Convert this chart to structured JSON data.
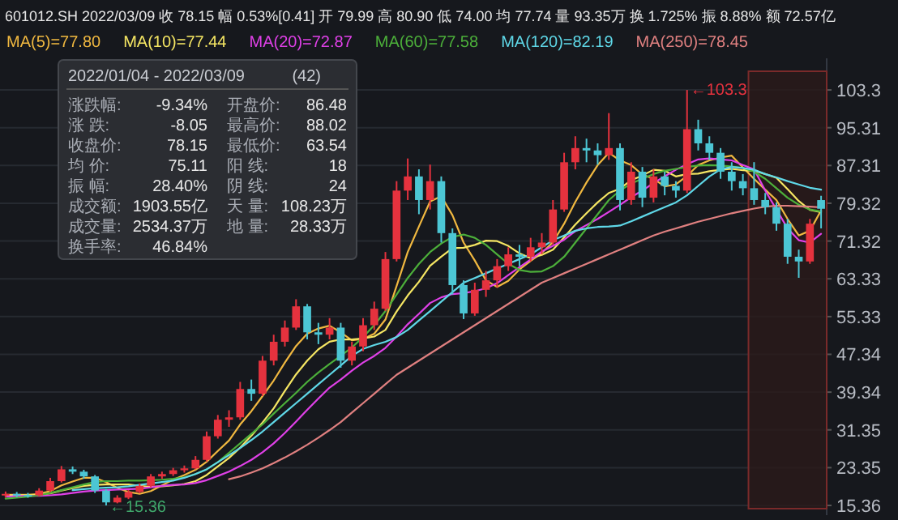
{
  "chart_data": {
    "type": "candlestick",
    "title": "601012.SH 2022/03/09  收 78.15  幅 0.53%[0.41]  开 79.99  高 80.90  低 74.00  均 77.74  量 93.35万  换 1.725%  振 8.88%  额 72.57亿",
    "categories": [
      null,
      null,
      null,
      null,
      null,
      null,
      null,
      null,
      null,
      null,
      null,
      null,
      null,
      null,
      null,
      null,
      null,
      null,
      null,
      null,
      null,
      null,
      null,
      null,
      null,
      null,
      null,
      null,
      null,
      null,
      null,
      null,
      null,
      null,
      null,
      null,
      null,
      null,
      null,
      null,
      null,
      null,
      null,
      null,
      null,
      null,
      null,
      null,
      null,
      null,
      null,
      null,
      null,
      null,
      null,
      null,
      null,
      null,
      null,
      null,
      null,
      null,
      null,
      null,
      null,
      null,
      null,
      null,
      null,
      null,
      null,
      null,
      null,
      null
    ],
    "ohlc": [
      [
        17.5,
        18.3,
        17.0,
        17.8
      ],
      [
        17.8,
        18.2,
        17.1,
        17.6
      ],
      [
        17.6,
        18.0,
        17.0,
        17.5
      ],
      [
        17.5,
        19.0,
        17.3,
        18.5
      ],
      [
        18.5,
        21.2,
        18.2,
        20.5
      ],
      [
        20.5,
        23.7,
        20.2,
        23.0
      ],
      [
        23.0,
        23.6,
        22.0,
        22.5
      ],
      [
        22.5,
        22.9,
        21.0,
        21.5
      ],
      [
        21.5,
        21.8,
        18.0,
        18.5
      ],
      [
        18.5,
        18.8,
        15.36,
        16.0
      ],
      [
        16.0,
        17.5,
        15.8,
        17.0
      ],
      [
        17.0,
        18.6,
        16.7,
        18.2
      ],
      [
        18.2,
        20.0,
        17.9,
        19.5
      ],
      [
        19.5,
        22.0,
        19.2,
        21.5
      ],
      [
        21.5,
        22.5,
        21.0,
        22.0
      ],
      [
        22.0,
        23.3,
        21.6,
        22.8
      ],
      [
        22.8,
        23.8,
        22.3,
        23.2
      ],
      [
        23.2,
        25.8,
        23.0,
        25.0
      ],
      [
        25.0,
        31.0,
        24.6,
        30.0
      ],
      [
        30.0,
        34.5,
        29.5,
        33.5
      ],
      [
        33.5,
        35.5,
        32.0,
        34.0
      ],
      [
        34.0,
        41.5,
        33.5,
        40.0
      ],
      [
        40.0,
        42.0,
        37.5,
        39.0
      ],
      [
        39.0,
        47.0,
        38.5,
        46.0
      ],
      [
        46.0,
        51.5,
        45.0,
        50.0
      ],
      [
        50.0,
        54.5,
        49.0,
        53.0
      ],
      [
        53.0,
        59.0,
        52.5,
        57.5
      ],
      [
        57.5,
        58.0,
        50.5,
        52.0
      ],
      [
        52.0,
        54.0,
        49.5,
        51.5
      ],
      [
        51.5,
        55.0,
        50.5,
        53.0
      ],
      [
        53.0,
        54.0,
        44.5,
        46.0
      ],
      [
        46.0,
        50.0,
        45.0,
        49.0
      ],
      [
        49.0,
        55.0,
        48.0,
        53.5
      ],
      [
        53.5,
        58.5,
        52.5,
        57.0
      ],
      [
        57.0,
        69.0,
        56.5,
        67.5
      ],
      [
        67.5,
        84.0,
        67.0,
        82.0
      ],
      [
        82.0,
        88.8,
        80.0,
        85.0
      ],
      [
        85.0,
        86.5,
        77.0,
        80.0
      ],
      [
        80.0,
        87.5,
        78.0,
        84.0
      ],
      [
        84.0,
        85.0,
        71.0,
        73.0
      ],
      [
        73.0,
        74.0,
        60.0,
        62.0
      ],
      [
        62.0,
        63.0,
        54.8,
        56.0
      ],
      [
        56.0,
        62.5,
        55.5,
        61.0
      ],
      [
        61.0,
        65.0,
        59.5,
        63.0
      ],
      [
        63.0,
        67.5,
        61.5,
        66.0
      ],
      [
        66.0,
        70.0,
        65.0,
        68.5
      ],
      [
        68.5,
        70.5,
        66.0,
        68.0
      ],
      [
        68.0,
        72.0,
        67.0,
        70.0
      ],
      [
        70.0,
        73.0,
        68.5,
        71.0
      ],
      [
        71.0,
        80.0,
        70.5,
        78.0
      ],
      [
        78.0,
        90.0,
        77.5,
        88.0
      ],
      [
        88.0,
        93.5,
        86.5,
        91.0
      ],
      [
        91.0,
        93.0,
        88.0,
        90.5
      ],
      [
        90.5,
        92.0,
        87.5,
        89.5
      ],
      [
        89.5,
        98.4,
        88.5,
        91.0
      ],
      [
        91.0,
        92.0,
        77.8,
        80.0
      ],
      [
        80.0,
        88.0,
        79.0,
        86.0
      ],
      [
        86.0,
        87.0,
        78.5,
        80.5
      ],
      [
        80.5,
        86.5,
        79.5,
        85.0
      ],
      [
        85.0,
        86.0,
        81.0,
        83.0
      ],
      [
        83.0,
        84.0,
        80.5,
        82.0
      ],
      [
        82.0,
        103.3,
        81.5,
        95.0
      ],
      [
        95.0,
        97.0,
        90.5,
        92.0
      ],
      [
        92.0,
        93.5,
        88.5,
        90.0
      ],
      [
        90.0,
        91.0,
        84.5,
        86.0
      ],
      [
        86.0,
        88.0,
        82.0,
        84.0
      ],
      [
        84.0,
        85.5,
        81.0,
        82.5
      ],
      [
        82.5,
        88.02,
        79.0,
        80.0
      ],
      [
        80.0,
        81.5,
        77.0,
        78.5
      ],
      [
        78.5,
        79.5,
        73.5,
        75.0
      ],
      [
        75.0,
        76.0,
        66.5,
        68.0
      ],
      [
        68.0,
        69.5,
        63.54,
        67.0
      ],
      [
        67.0,
        76.0,
        66.5,
        75.0
      ],
      [
        79.99,
        80.9,
        74.0,
        78.15
      ]
    ],
    "series": [
      {
        "name": "MA(5)=77.80",
        "type": "line",
        "color": "#f0b840",
        "values": [
          17.6,
          17.6,
          17.6,
          17.8,
          18.4,
          19.6,
          20.4,
          21.2,
          21.2,
          20.3,
          19.1,
          18.2,
          17.8,
          18.4,
          19.6,
          20.8,
          21.8,
          22.9,
          24.6,
          26.9,
          29.1,
          32.5,
          35.3,
          38.5,
          41.8,
          45.6,
          49.1,
          51.7,
          52.8,
          53.4,
          52.0,
          50.3,
          50.6,
          51.7,
          54.7,
          61.8,
          69.0,
          74.4,
          79.7,
          80.8,
          76.8,
          71.0,
          67.2,
          63.0,
          61.6,
          62.9,
          65.3,
          67.1,
          68.8,
          71.1,
          75.0,
          79.6,
          83.7,
          87.4,
          90.0,
          88.4,
          87.4,
          85.4,
          84.5,
          82.9,
          83.3,
          85.1,
          87.4,
          88.4,
          89.0,
          89.4,
          86.9,
          84.5,
          82.2,
          80.0,
          76.0,
          72.5,
          73.5,
          77.8
        ]
      },
      {
        "name": "MA(10)=77.44",
        "type": "line",
        "color": "#f5e663",
        "values": [
          17.5,
          17.5,
          17.5,
          17.6,
          17.9,
          18.5,
          19.0,
          19.5,
          19.7,
          19.8,
          19.8,
          19.8,
          19.5,
          19.3,
          19.4,
          19.6,
          19.9,
          20.5,
          21.8,
          23.6,
          25.4,
          27.6,
          30.1,
          32.9,
          35.9,
          39.6,
          43.1,
          46.0,
          48.4,
          50.0,
          50.5,
          50.5,
          50.7,
          51.1,
          52.5,
          56.4,
          59.8,
          62.7,
          66.1,
          68.0,
          69.8,
          69.9,
          70.5,
          71.4,
          71.3,
          70.3,
          68.7,
          67.7,
          68.4,
          69.5,
          72.1,
          74.8,
          77.2,
          79.5,
          81.5,
          82.4,
          84.2,
          85.2,
          86.4,
          86.2,
          85.0,
          85.5,
          85.6,
          86.1,
          86.4,
          86.6,
          86.3,
          86.2,
          85.5,
          84.7,
          82.3,
          79.8,
          77.9,
          77.44
        ]
      },
      {
        "name": "MA(20)=72.87",
        "type": "line",
        "color": "#e040e8",
        "values": [
          17.2,
          17.3,
          17.4,
          17.4,
          17.5,
          17.7,
          18.0,
          18.3,
          18.5,
          18.6,
          18.7,
          18.8,
          18.9,
          19.2,
          19.5,
          19.7,
          19.8,
          20.1,
          20.7,
          21.6,
          22.5,
          23.7,
          25.0,
          26.6,
          28.5,
          30.7,
          33.1,
          35.6,
          38.0,
          40.3,
          42.0,
          43.9,
          45.6,
          47.0,
          48.7,
          51.1,
          53.7,
          55.9,
          58.2,
          59.4,
          60.1,
          60.3,
          60.7,
          61.3,
          62.4,
          64.1,
          65.8,
          67.4,
          69.1,
          70.3,
          71.6,
          73.4,
          74.7,
          76.0,
          77.5,
          79.0,
          80.6,
          82.0,
          83.6,
          85.0,
          86.4,
          87.6,
          88.6,
          88.8,
          88.6,
          88.4,
          87.4,
          86.5,
          82.0,
          78.0,
          74.0,
          71.5,
          71.0,
          72.87
        ]
      },
      {
        "name": "MA(60)=77.58",
        "type": "line",
        "color": "#4caf3a",
        "values": [
          16.8,
          17.0,
          17.2,
          17.5,
          18.0,
          18.6,
          19.2,
          19.8,
          20.3,
          20.5,
          20.5,
          20.6,
          20.6,
          20.7,
          20.8,
          21.0,
          21.3,
          22.0,
          23.0,
          24.5,
          26.5,
          28.5,
          30.5,
          32.5,
          34.8,
          37.0,
          39.2,
          41.5,
          43.5,
          45.3,
          47.0,
          48.8,
          51.0,
          53.5,
          56.5,
          60.0,
          63.5,
          66.5,
          69.0,
          70.8,
          72.2,
          72.7,
          72.0,
          70.5,
          68.5,
          66.5,
          65.2,
          64.8,
          64.9,
          66.0,
          68.0,
          71.0,
          74.0,
          77.0,
          80.0,
          82.0,
          83.5,
          84.5,
          85.5,
          86.2,
          86.6,
          87.0,
          87.3,
          87.4,
          87.3,
          87.1,
          86.8,
          86.0,
          84.5,
          82.5,
          80.5,
          79.0,
          78.0,
          77.58
        ]
      },
      {
        "name": "MA(120)=82.19",
        "type": "line",
        "color": "#5fd8e8",
        "values": [
          null,
          null,
          null,
          null,
          null,
          null,
          18.6,
          18.8,
          19.0,
          19.1,
          19.2,
          19.4,
          19.7,
          20.0,
          20.3,
          20.6,
          21.2,
          22.0,
          23.0,
          24.5,
          26.0,
          27.5,
          29.2,
          31.0,
          33.0,
          35.0,
          37.0,
          39.0,
          41.0,
          43.0,
          45.0,
          47.0,
          48.5,
          49.3,
          50.0,
          51.0,
          52.5,
          54.5,
          56.5,
          58.5,
          60.5,
          62.5,
          63.5,
          64.5,
          65.5,
          66.5,
          67.5,
          68.5,
          70.0,
          71.5,
          72.5,
          73.5,
          74.0,
          74.3,
          74.4,
          74.6,
          75.5,
          76.5,
          77.5,
          78.5,
          79.5,
          81.0,
          83.0,
          85.0,
          86.5,
          87.0,
          86.8,
          86.4,
          85.5,
          84.8,
          84.0,
          83.3,
          82.6,
          82.19
        ]
      },
      {
        "name": "MA(250)=78.45",
        "type": "line",
        "color": "#e08080",
        "values": [
          null,
          null,
          null,
          null,
          null,
          null,
          null,
          null,
          null,
          null,
          null,
          null,
          null,
          null,
          null,
          null,
          null,
          null,
          null,
          null,
          20.9,
          21.5,
          22.3,
          23.2,
          24.3,
          25.5,
          26.8,
          28.2,
          29.7,
          31.3,
          33.0,
          35.0,
          37.0,
          39.0,
          41.0,
          43.0,
          44.5,
          46.0,
          47.5,
          49.0,
          50.5,
          52.0,
          53.5,
          55.0,
          56.5,
          58.0,
          59.5,
          61.0,
          62.5,
          63.5,
          64.5,
          65.5,
          66.5,
          67.5,
          68.5,
          69.5,
          70.5,
          71.5,
          72.5,
          73.3,
          74.0,
          74.7,
          75.4,
          76.0,
          76.6,
          77.2,
          77.7,
          78.2,
          78.6,
          78.8,
          78.8,
          78.7,
          78.6,
          78.45
        ]
      }
    ],
    "ylim": [
      13.3,
      110
    ],
    "yticks": [
      15.36,
      23.35,
      31.35,
      39.34,
      47.34,
      55.33,
      63.33,
      71.32,
      79.32,
      87.31,
      95.31,
      103.3
    ],
    "grid": "y",
    "legend": "top",
    "annotations": [
      "←103.3",
      "←15.36",
      "2022/01/04 - 2022/03/09",
      "(42)",
      "涨跌幅:",
      "-9.34%",
      "开盘价:",
      "86.48",
      "涨 跌:",
      "-8.05",
      "最高价:",
      "88.02",
      "收盘价:",
      "78.15",
      "最低价:",
      "63.54",
      "均 价:",
      "75.11",
      "阳 线:",
      "18",
      "振 幅:",
      "28.40%",
      "阴 线:",
      "24",
      "成交额:",
      "1903.55亿",
      "天 量:",
      "108.23万",
      "成交量:",
      "2534.37万",
      "地 量:",
      "28.33万",
      "换手率:",
      "46.84%"
    ]
  }
}
